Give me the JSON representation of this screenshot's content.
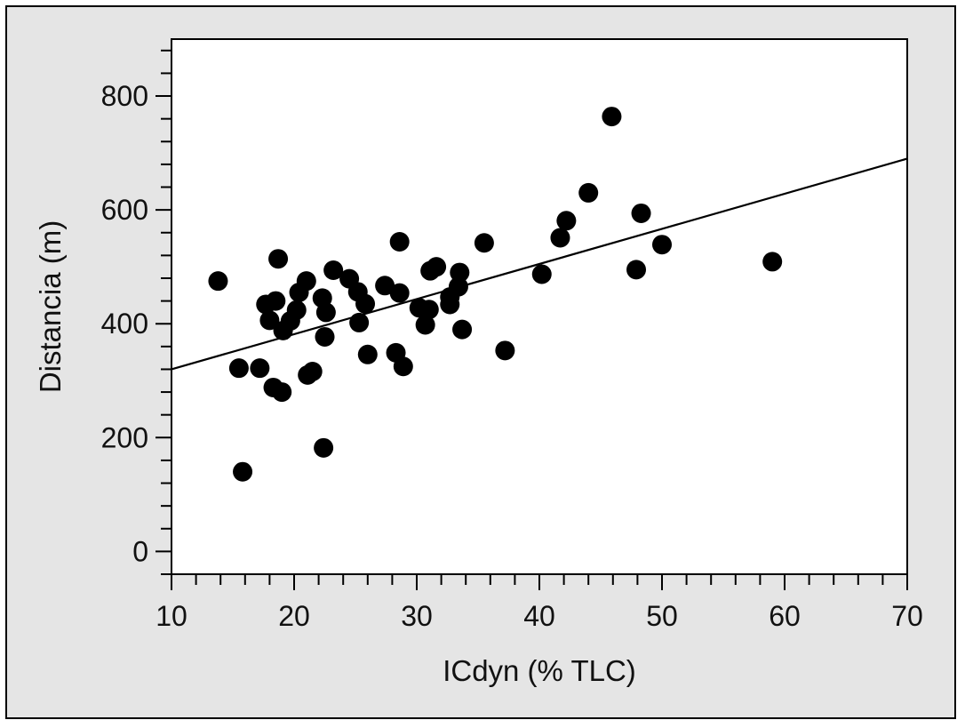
{
  "chart_data": {
    "type": "scatter",
    "title": "",
    "xlabel": "ICdyn (% TLC)",
    "ylabel": "Distancia (m)",
    "xlim": [
      10,
      70
    ],
    "ylim": [
      -40,
      900
    ],
    "x_ticks": [
      10,
      20,
      30,
      40,
      50,
      60,
      70
    ],
    "y_ticks": [
      0,
      200,
      400,
      600,
      800
    ],
    "x_tick_labels": [
      "10",
      "20",
      "30",
      "40",
      "50",
      "60",
      "70"
    ],
    "y_tick_labels": [
      "0",
      "200",
      "400",
      "600",
      "800"
    ],
    "grid": false,
    "legend": "none",
    "colors": {
      "points": "#000000",
      "line": "#000000",
      "frame": "#e5e5e5",
      "plot_bg": "#ffffff"
    },
    "trendline": {
      "x": [
        10,
        70
      ],
      "y": [
        320,
        690
      ]
    },
    "points": {
      "x": [
        13.8,
        15.5,
        15.8,
        17.2,
        17.7,
        18.0,
        18.3,
        18.5,
        18.7,
        19.0,
        19.1,
        19.7,
        20.2,
        20.4,
        21.0,
        21.1,
        21.5,
        22.3,
        22.4,
        22.5,
        22.6,
        23.2,
        24.5,
        25.2,
        25.3,
        25.8,
        26.0,
        27.4,
        28.3,
        28.6,
        28.6,
        28.9,
        30.2,
        30.7,
        31.0,
        31.1,
        31.6,
        32.7,
        32.7,
        33.4,
        33.5,
        33.7,
        35.5,
        37.2,
        40.2,
        41.7,
        42.2,
        44.0,
        45.9,
        47.9,
        48.3,
        50.0,
        59.0
      ],
      "y": [
        475,
        322,
        140,
        322,
        434,
        406,
        288,
        440,
        514,
        280,
        388,
        405,
        424,
        455,
        475,
        310,
        316,
        445,
        182,
        377,
        420,
        494,
        479,
        456,
        402,
        435,
        346,
        467,
        349,
        544,
        454,
        325,
        428,
        398,
        425,
        493,
        500,
        447,
        434,
        465,
        490,
        390,
        542,
        353,
        487,
        551,
        581,
        630,
        764,
        495,
        594,
        539,
        509
      ]
    }
  }
}
